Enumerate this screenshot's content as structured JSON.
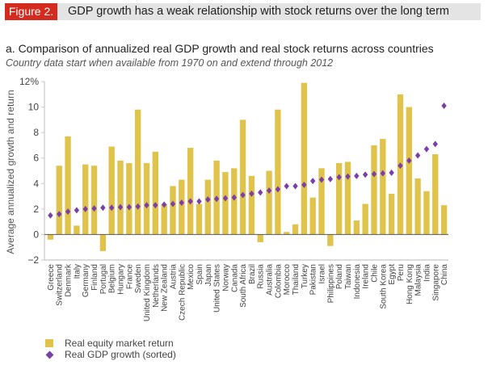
{
  "header": {
    "figure_tag": "Figure 2.",
    "title": "GDP growth has a weak relationship with stock returns over the long term"
  },
  "subtitle": "a. Comparison of annualized real GDP growth and real stock returns across countries",
  "note": "Country data start when available from 1970 on and extend through 2012",
  "colors": {
    "equity_bar": "#e0c34a",
    "gdp_marker": "#7b3fa8",
    "tag_red": "#d52b1e"
  },
  "chart_data": {
    "type": "bar",
    "title": "Comparison of annualized real GDP growth and real stock returns across countries",
    "xlabel": "",
    "ylabel": "Average annualized growth and return",
    "ylim": [
      -2,
      12
    ],
    "yticks": [
      -2,
      0,
      2,
      4,
      6,
      8,
      10,
      12
    ],
    "ytick_labels": [
      "−2",
      "0",
      "2",
      "4",
      "6",
      "8",
      "10",
      "12%"
    ],
    "grid": false,
    "legend_position": "bottom-left",
    "categories": [
      "Greece",
      "Switzerland",
      "Denmark",
      "Italy",
      "Germany",
      "Finland",
      "Portugal",
      "Belgium",
      "Hungary",
      "France",
      "Sweden",
      "United Kingdom",
      "Netherlands",
      "New Zealand",
      "Austria",
      "Czech Republic",
      "Mexico",
      "Spain",
      "Japan",
      "United States",
      "Norway",
      "Canada",
      "South Africa",
      "Brazil",
      "Russia",
      "Australia",
      "Colombia",
      "Morocco",
      "Thailand",
      "Turkey",
      "Pakistan",
      "Israel",
      "Philippines",
      "Poland",
      "Taiwan",
      "Indonesia",
      "Ireland",
      "Chile",
      "South Korea",
      "Egypt",
      "Peru",
      "Hong Kong",
      "Malaysia",
      "India",
      "Singapore",
      "China"
    ],
    "series": [
      {
        "name": "Real equity market return",
        "type": "bar",
        "values": [
          -0.4,
          5.4,
          7.7,
          0.7,
          5.5,
          5.4,
          -1.3,
          6.9,
          5.8,
          5.6,
          9.8,
          5.6,
          6.5,
          2.4,
          3.8,
          4.3,
          6.8,
          2.4,
          4.3,
          5.8,
          4.9,
          5.2,
          9.0,
          4.6,
          -0.6,
          5.0,
          9.8,
          0.2,
          0.8,
          11.9,
          2.9,
          5.2,
          -0.9,
          5.6,
          5.7,
          1.1,
          2.4,
          7.0,
          7.5,
          3.2,
          11.0,
          10.0,
          4.4,
          3.4,
          6.3,
          2.3
        ]
      },
      {
        "name": "Real GDP growth (sorted)",
        "type": "scatter",
        "marker": "diamond",
        "values": [
          1.5,
          1.6,
          1.8,
          1.9,
          2.0,
          2.05,
          2.1,
          2.1,
          2.15,
          2.15,
          2.2,
          2.3,
          2.3,
          2.35,
          2.4,
          2.5,
          2.6,
          2.6,
          2.75,
          2.8,
          2.85,
          2.9,
          3.1,
          3.2,
          3.3,
          3.45,
          3.55,
          3.8,
          3.8,
          3.9,
          4.2,
          4.3,
          4.35,
          4.5,
          4.55,
          4.6,
          4.7,
          4.75,
          4.8,
          4.85,
          5.4,
          5.8,
          6.2,
          6.7,
          7.1,
          10.1
        ]
      }
    ]
  },
  "legend": {
    "items": [
      {
        "label": "Real equity market return",
        "symbol": "square"
      },
      {
        "label": "Real GDP growth (sorted)",
        "symbol": "diamond"
      }
    ]
  }
}
